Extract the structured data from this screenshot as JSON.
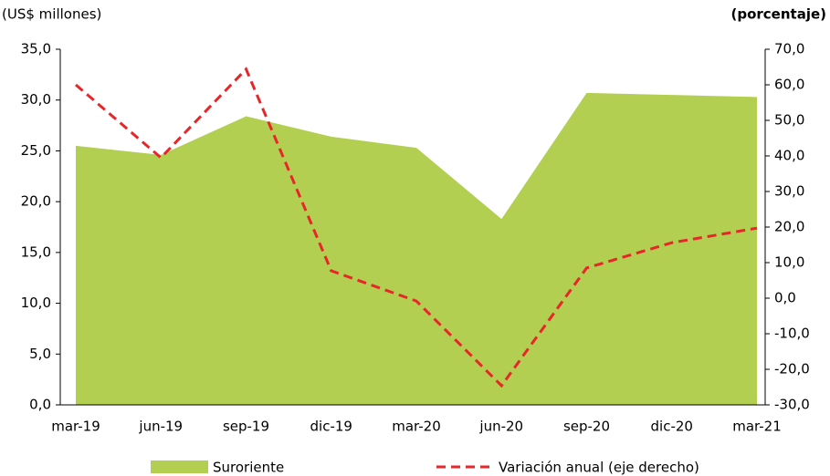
{
  "chart_data": {
    "type": "area",
    "y_label": "(US$ millones)",
    "y2_label": "(porcentaje)",
    "categories": [
      "mar-19",
      "jun-19",
      "sep-19",
      "dic-19",
      "mar-20",
      "jun-20",
      "sep-20",
      "dic-20",
      "mar-21"
    ],
    "series": [
      {
        "name": "Suroriente",
        "type": "area",
        "color": "#b3cf52",
        "values": [
          25.5,
          24.6,
          28.4,
          26.4,
          25.3,
          18.3,
          30.7,
          30.5,
          30.3
        ]
      },
      {
        "name": "Variación anual (eje derecho)",
        "type": "line",
        "axis": "y2",
        "color": "#e8262a",
        "dashed": true,
        "values": [
          60.0,
          39.5,
          64.4,
          7.7,
          -0.8,
          -24.6,
          8.5,
          15.6,
          19.7
        ]
      }
    ],
    "ylim": [
      0,
      35
    ],
    "yticks": [
      {
        "value": 0,
        "label": "0,0"
      },
      {
        "value": 5,
        "label": "5,0"
      },
      {
        "value": 10,
        "label": "10,0"
      },
      {
        "value": 15,
        "label": "15,0"
      },
      {
        "value": 20,
        "label": "20,0"
      },
      {
        "value": 25,
        "label": "25,0"
      },
      {
        "value": 30,
        "label": "30,0"
      },
      {
        "value": 35,
        "label": "35,0"
      }
    ],
    "y2lim": [
      -30,
      70
    ],
    "y2ticks": [
      {
        "value": -30,
        "label": "-30,0"
      },
      {
        "value": -20,
        "label": "-20,0"
      },
      {
        "value": -10,
        "label": "-10,0"
      },
      {
        "value": 0,
        "label": "0,0"
      },
      {
        "value": 10,
        "label": "10,0"
      },
      {
        "value": 20,
        "label": "20,0"
      },
      {
        "value": 30,
        "label": "30,0"
      },
      {
        "value": 40,
        "label": "40,0"
      },
      {
        "value": 50,
        "label": "50,0"
      },
      {
        "value": 60,
        "label": "60,0"
      },
      {
        "value": 70,
        "label": "70,0"
      }
    ],
    "legend": "bottom"
  }
}
